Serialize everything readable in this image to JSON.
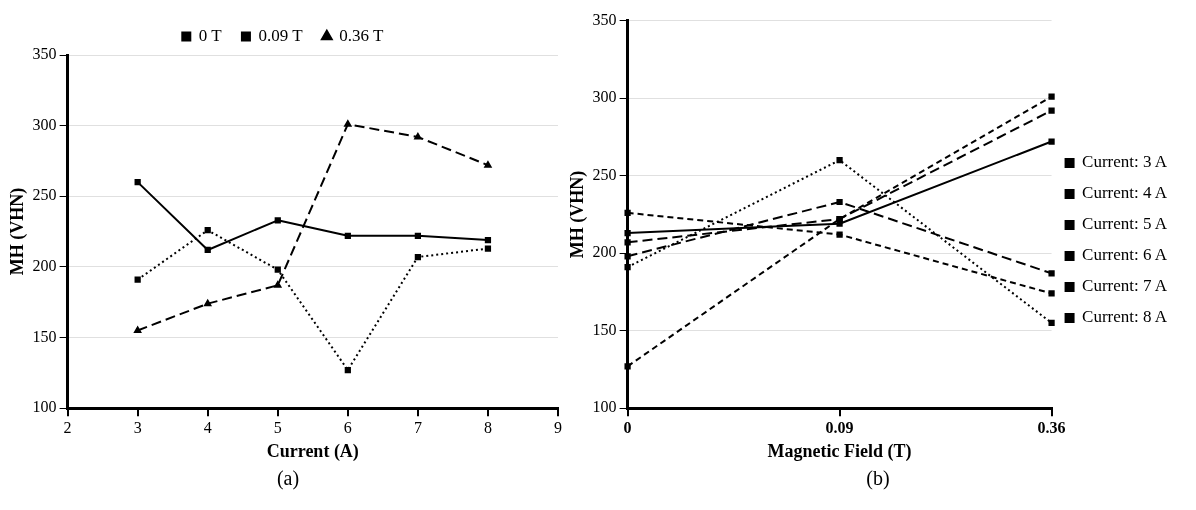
{
  "chart_data": [
    {
      "type": "line",
      "xlabel": "Current (A)",
      "ylabel": "MH (VHN)",
      "x": [
        3,
        4,
        5,
        6,
        7,
        8
      ],
      "xlim": [
        2,
        9
      ],
      "xticks": [
        2,
        3,
        4,
        5,
        6,
        7,
        8,
        9
      ],
      "ylim": [
        100,
        350
      ],
      "yticks": [
        100,
        150,
        200,
        250,
        300,
        350
      ],
      "grid": "y",
      "legend": "top",
      "marker": "square",
      "annotations": [
        "(a)"
      ],
      "series": [
        {
          "name": "0 T",
          "color": "#000000",
          "line_style": "dotted",
          "values": [
            191,
            226,
            198,
            127,
            207,
            213
          ]
        },
        {
          "name": "0.09 T",
          "color": "#000000",
          "line_style": "solid",
          "values": [
            260,
            212,
            233,
            222,
            222,
            219
          ]
        },
        {
          "name": "0.36 T",
          "color": "#000000",
          "line_style": "dashed",
          "marker": "triangle",
          "values": [
            155,
            174,
            187,
            301,
            292,
            272
          ]
        }
      ]
    },
    {
      "type": "line",
      "xlabel": "Magnetic Field (T)",
      "ylabel": "MH (VHN)",
      "categories": [
        "0",
        "0.09",
        "0.36"
      ],
      "ylim": [
        100,
        350
      ],
      "yticks": [
        100,
        150,
        200,
        250,
        300,
        350
      ],
      "grid": "y",
      "legend": "right",
      "marker": "square",
      "annotations": [
        "(b)"
      ],
      "series": [
        {
          "name": "Current: 3 A",
          "color": "#000000",
          "line_style": "dotted",
          "values": [
            191,
            260,
            155
          ]
        },
        {
          "name": "Current: 4 A",
          "color": "#000000",
          "line_style": "dashed",
          "values": [
            226,
            212,
            174
          ]
        },
        {
          "name": "Current: 5 A",
          "color": "#000000",
          "line_style": "dashed",
          "values": [
            198,
            233,
            187
          ]
        },
        {
          "name": "Current: 6 A",
          "color": "#000000",
          "line_style": "dashed",
          "values": [
            127,
            222,
            301
          ]
        },
        {
          "name": "Current: 7 A",
          "color": "#000000",
          "line_style": "dashed",
          "values": [
            207,
            222,
            292
          ]
        },
        {
          "name": "Current: 8 A",
          "color": "#000000",
          "line_style": "solid",
          "values": [
            213,
            219,
            272
          ]
        }
      ]
    }
  ]
}
